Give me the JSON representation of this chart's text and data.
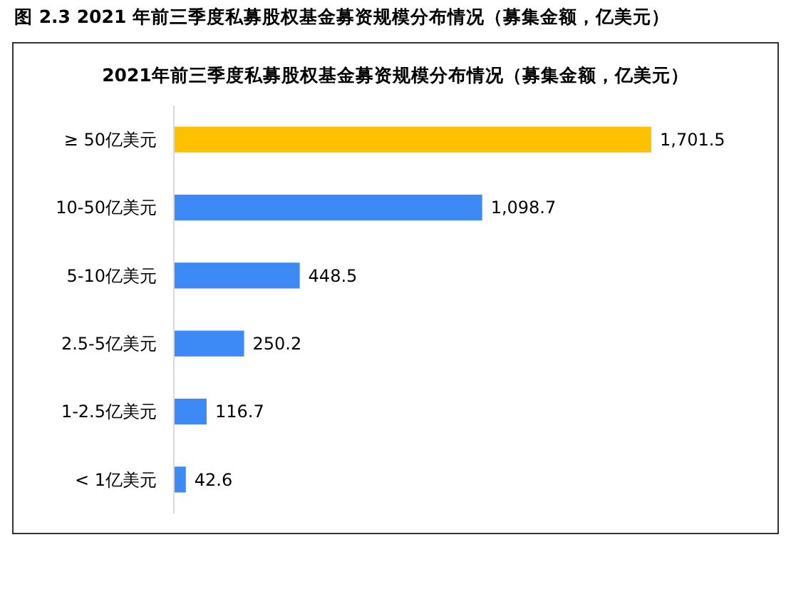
{
  "chart_data": {
    "type": "bar",
    "orientation": "horizontal",
    "title": "图 2.3 2021 年前三季度私募股权基金募资规模分布情况（募集金额，亿美元）",
    "subtitle": "2021年前三季度私募股权基金募资规模分布情况（募集金额，亿美元）",
    "categories": [
      "≥ 50亿美元",
      "10-50亿美元",
      "5-10亿美元",
      "2.5-5亿美元",
      "1-2.5亿美元",
      "< 1亿美元"
    ],
    "values": [
      1701.5,
      1098.7,
      448.5,
      250.2,
      116.7,
      42.6
    ],
    "colors": [
      "#ffc000",
      "#3d8af7",
      "#3d8af7",
      "#3d8af7",
      "#3d8af7",
      "#3d8af7"
    ],
    "value_labels": [
      "1,701.5",
      "1,098.7",
      "448.5",
      "250.2",
      "116.7",
      "42.6"
    ]
  }
}
